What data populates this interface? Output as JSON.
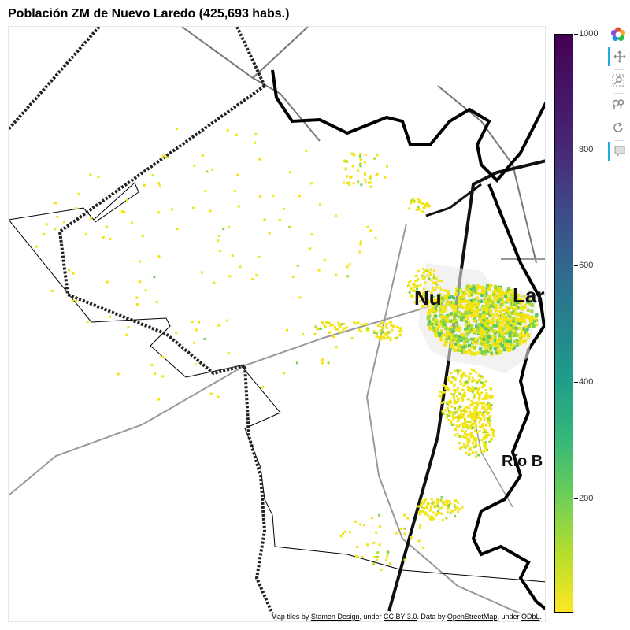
{
  "title": "Población ZM de Nuevo Laredo (425,693 habs.)",
  "map": {
    "labels": {
      "nuevo_laredo_fragment": "Nu",
      "laredo_fragment": "Lar",
      "rio_bravo_fragment": "Río B"
    },
    "attribution": {
      "prefix": "Map tiles by ",
      "stamen": "Stamen Design",
      "under1": ", under ",
      "ccby": "CC BY 3.0",
      "data": ". Data by ",
      "osm": "OpenStreetMap",
      "under2": ", under ",
      "odbl": "ODbL",
      "end": "."
    }
  },
  "colorbar": {
    "ticks": [
      "1000",
      "800",
      "600",
      "400",
      "200"
    ],
    "palette": "viridis (reversed)",
    "min": 0,
    "max": 1000
  },
  "toolbar": {
    "icons": [
      "bokeh-logo-icon",
      "pan-icon",
      "box-zoom-icon",
      "wheel-zoom-icon",
      "reset-icon",
      "hover-icon"
    ]
  },
  "colors": {
    "low": "#fde725",
    "mid": "#6ece58",
    "high": "#440154"
  }
}
